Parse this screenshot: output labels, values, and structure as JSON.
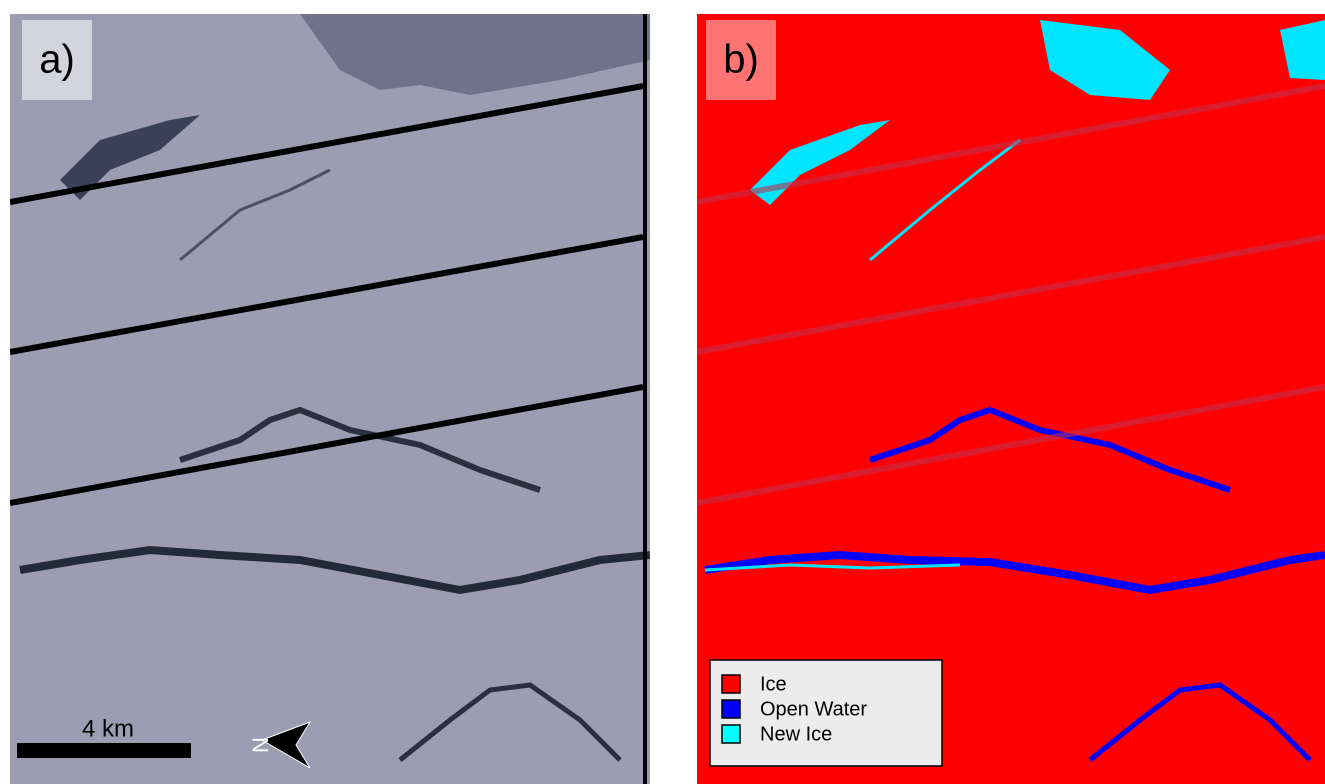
{
  "panel_a": {
    "label": "a)",
    "scale_bar": "4 km",
    "north": "N"
  },
  "panel_b": {
    "label": "b)",
    "legend": [
      {
        "label": "Ice",
        "color": "#ff0000"
      },
      {
        "label": "Open Water",
        "color": "#0000ff"
      },
      {
        "label": "New Ice",
        "color": "#00ffff"
      }
    ]
  }
}
